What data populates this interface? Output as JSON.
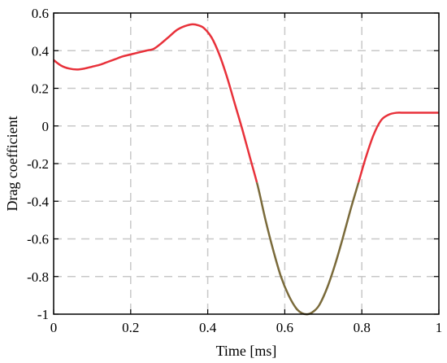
{
  "chart_data": {
    "type": "line",
    "title": "",
    "xlabel": "Time [ms]",
    "ylabel": "Drag coefficient",
    "xlim": [
      0,
      1
    ],
    "ylim": [
      -1,
      0.6
    ],
    "xticks": [
      0,
      0.2,
      0.4,
      0.6,
      0.8,
      1
    ],
    "xtick_labels": [
      "0",
      "0.2",
      "0.4",
      "0.6",
      "0.8",
      "1"
    ],
    "yticks": [
      -1,
      -0.8,
      -0.6,
      -0.4,
      -0.2,
      0,
      0.2,
      0.4,
      0.6
    ],
    "ytick_labels": [
      "-1",
      "-0.8",
      "-0.6",
      "-0.4",
      "-0.2",
      "0",
      "0.2",
      "0.4",
      "0.6"
    ],
    "grid": true,
    "grid_style": "dashed",
    "legend": "none",
    "series": [
      {
        "color": "#e8313a",
        "low_segment_color": "#7a6a3a",
        "x": [
          0.0,
          0.02,
          0.04,
          0.06,
          0.08,
          0.1,
          0.12,
          0.14,
          0.16,
          0.18,
          0.2,
          0.22,
          0.24,
          0.26,
          0.28,
          0.3,
          0.32,
          0.34,
          0.36,
          0.375,
          0.39,
          0.41,
          0.43,
          0.45,
          0.47,
          0.49,
          0.51,
          0.53,
          0.55,
          0.57,
          0.59,
          0.61,
          0.63,
          0.645,
          0.66,
          0.675,
          0.69,
          0.71,
          0.73,
          0.75,
          0.77,
          0.79,
          0.81,
          0.83,
          0.85,
          0.87,
          0.89,
          0.91,
          0.93,
          0.95,
          0.97,
          1.0
        ],
        "y": [
          0.35,
          0.32,
          0.305,
          0.3,
          0.305,
          0.315,
          0.325,
          0.34,
          0.355,
          0.37,
          0.38,
          0.39,
          0.4,
          0.41,
          0.44,
          0.475,
          0.51,
          0.53,
          0.54,
          0.535,
          0.52,
          0.47,
          0.38,
          0.26,
          0.12,
          -0.02,
          -0.17,
          -0.32,
          -0.5,
          -0.66,
          -0.8,
          -0.9,
          -0.97,
          -0.995,
          -1.0,
          -0.985,
          -0.95,
          -0.86,
          -0.74,
          -0.6,
          -0.45,
          -0.31,
          -0.17,
          -0.05,
          0.03,
          0.06,
          0.07,
          0.07,
          0.07,
          0.07,
          0.07,
          0.07
        ]
      }
    ]
  }
}
